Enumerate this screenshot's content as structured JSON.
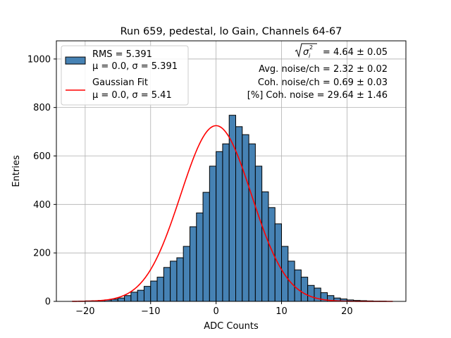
{
  "chart_data": {
    "type": "bar",
    "title": "Run 659, pedestal, lo Gain, Channels 64-67",
    "xlabel": "ADC Counts",
    "ylabel": "Entries",
    "xlim": [
      -24.4,
      29.0
    ],
    "ylim": [
      0,
      1075
    ],
    "xticks": [
      -20,
      -10,
      0,
      10,
      20
    ],
    "yticks": [
      0,
      200,
      400,
      600,
      800,
      1000
    ],
    "xtick_labels": [
      "−20",
      "−10",
      "0",
      "10",
      "20"
    ],
    "ytick_labels": [
      "0",
      "200",
      "400",
      "600",
      "800",
      "1000"
    ],
    "grid": true,
    "bin_width": 1,
    "bin_start": -22,
    "bin_values": [
      0,
      1,
      2,
      3,
      4,
      6,
      9,
      14,
      24,
      38,
      46,
      62,
      84,
      100,
      140,
      166,
      180,
      227,
      308,
      365,
      450,
      558,
      618,
      650,
      768,
      721,
      688,
      650,
      558,
      452,
      387,
      320,
      227,
      166,
      130,
      100,
      66,
      55,
      36,
      24,
      14,
      10,
      6,
      4,
      3,
      2,
      1,
      1,
      0
    ],
    "bar_color": "#4682b4",
    "fit_color": "#ff0000",
    "fit": {
      "mu": 0.0,
      "sigma": 5.41,
      "amplitude": 725,
      "x_range": [
        -22,
        27
      ]
    },
    "legend": {
      "placement": "top-left",
      "entries": [
        {
          "kind": "patch",
          "line1": "RMS = 5.391",
          "line2": "μ = 0.0, σ = 5.391"
        },
        {
          "kind": "line",
          "line1": "Gaussian Fit",
          "line2": "μ = 0.0, σ = 5.41"
        }
      ]
    },
    "annotations": {
      "sqrt_value": "= 4.64 ± 0.05",
      "lines": [
        "Avg. noise/ch = 2.32 ± 0.02",
        "Coh. noise/ch = 0.69 ± 0.03",
        "[%] Coh. noise = 29.64 ± 1.46"
      ]
    }
  }
}
